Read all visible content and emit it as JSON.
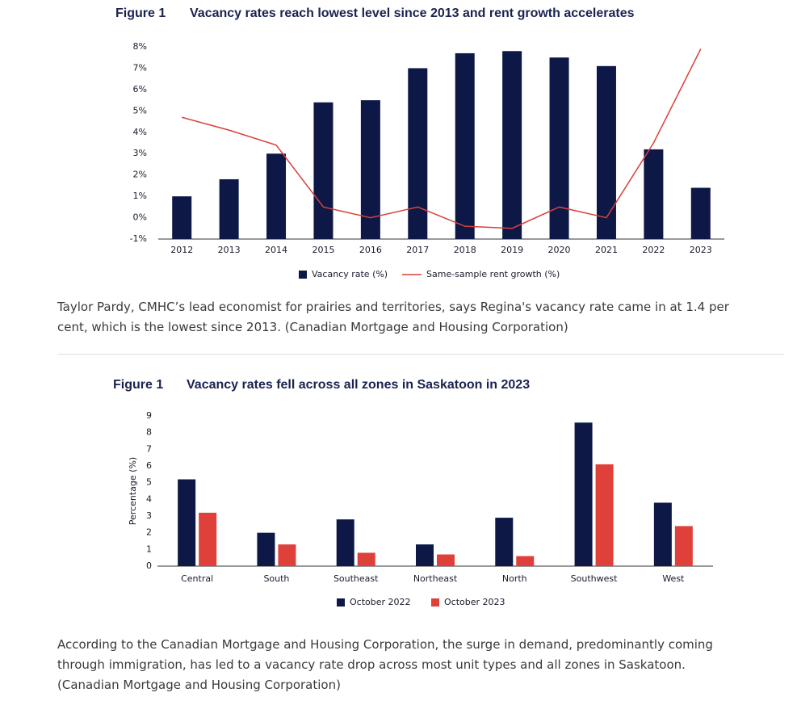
{
  "chart_data": [
    {
      "type": "bar",
      "figure": "Figure 1",
      "title": "Vacancy rates reach lowest level since 2013 and rent growth accelerates",
      "categories": [
        "2012",
        "2013",
        "2014",
        "2015",
        "2016",
        "2017",
        "2018",
        "2019",
        "2020",
        "2021",
        "2022",
        "2023"
      ],
      "series": [
        {
          "name": "Vacancy rate (%)",
          "type": "bar",
          "color": "#0d1846",
          "values": [
            1.0,
            1.8,
            3.0,
            5.4,
            5.5,
            7.0,
            7.7,
            7.8,
            7.5,
            7.1,
            3.2,
            1.4
          ]
        },
        {
          "name": "Same-sample rent growth (%)",
          "type": "line",
          "color": "#d9403a",
          "values": [
            4.7,
            4.1,
            3.4,
            0.5,
            0.0,
            0.5,
            -0.4,
            -0.5,
            0.5,
            0.0,
            3.5,
            7.9
          ]
        }
      ],
      "ylim": [
        -1,
        8
      ],
      "yticks": [
        {
          "value": -1,
          "label": "-1%"
        },
        {
          "value": 0,
          "label": "0%"
        },
        {
          "value": 1,
          "label": "1%"
        },
        {
          "value": 2,
          "label": "2%"
        },
        {
          "value": 3,
          "label": "3%"
        },
        {
          "value": 4,
          "label": "4%"
        },
        {
          "value": 5,
          "label": "5%"
        },
        {
          "value": 6,
          "label": "6%"
        },
        {
          "value": 7,
          "label": "7%"
        },
        {
          "value": 8,
          "label": "8%"
        }
      ],
      "grid": false
    },
    {
      "type": "bar",
      "figure": "Figure 1",
      "title": "Vacancy rates fell across all zones in Saskatoon in 2023",
      "ylabel": "Percentage (%)",
      "categories": [
        "Central",
        "South",
        "Southeast",
        "Northeast",
        "North",
        "Southwest",
        "West"
      ],
      "series": [
        {
          "name": "October 2022",
          "type": "bar",
          "color": "#0d1846",
          "values": [
            5.2,
            2.0,
            2.8,
            1.3,
            2.9,
            8.6,
            3.8
          ]
        },
        {
          "name": "October 2023",
          "type": "bar",
          "color": "#e0403a",
          "values": [
            3.2,
            1.3,
            0.8,
            0.7,
            0.6,
            6.1,
            2.4
          ]
        }
      ],
      "ylim": [
        0,
        9
      ],
      "yticks": [
        0,
        1,
        2,
        3,
        4,
        5,
        6,
        7,
        8,
        9
      ],
      "grid": false
    }
  ],
  "captions": [
    {
      "lines": [
        "Taylor Pardy, CMHC’s lead economist for prairies and territories, says Regina's vacancy rate came in at 1.4 per",
        "cent, which is the lowest since 2013. (Canadian Mortgage and Housing Corporation)"
      ]
    },
    {
      "lines": [
        "According to the Canadian Mortgage and Housing Corporation, the surge in demand, predominantly coming",
        "through immigration, has led to a vacancy rate drop across most unit types and all zones in Saskatoon.",
        "(Canadian Mortgage and Housing Corporation)"
      ]
    }
  ]
}
